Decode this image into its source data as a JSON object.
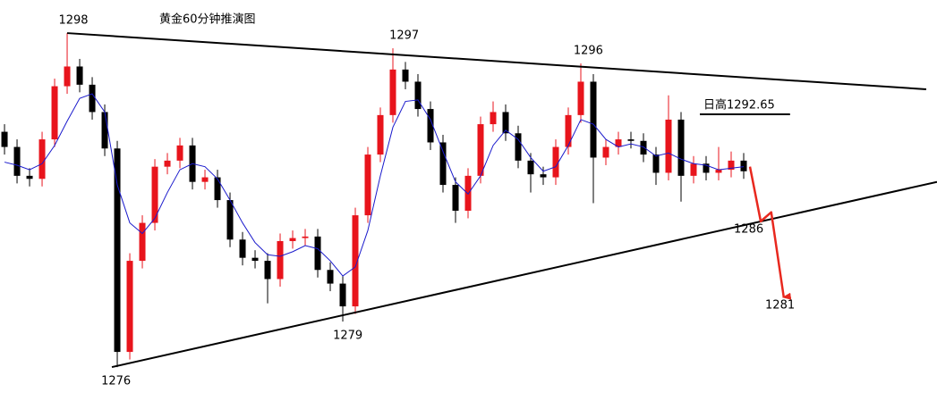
{
  "chart_data": {
    "type": "candlestick",
    "title": "黄金60分钟推演图",
    "x": [
      0,
      1,
      2,
      3,
      4,
      5,
      6,
      7,
      8,
      9,
      10,
      11,
      12,
      13,
      14,
      15,
      16,
      17,
      18,
      19,
      20,
      21,
      22,
      23,
      24,
      25,
      26,
      27,
      28,
      29,
      30,
      31,
      32,
      33,
      34,
      35,
      36,
      37,
      38,
      39,
      40,
      41,
      42,
      43,
      44,
      45,
      46,
      47,
      48,
      49,
      50,
      51,
      52,
      53,
      54,
      55,
      56,
      57,
      58,
      59
    ],
    "open": [
      1291.5,
      1290.5,
      1288.6,
      1288.4,
      1291.0,
      1294.5,
      1295.8,
      1294.6,
      1292.8,
      1290.4,
      1277.0,
      1283.0,
      1285.5,
      1289.2,
      1289.6,
      1290.6,
      1288.2,
      1288.5,
      1287.0,
      1284.4,
      1283.2,
      1283.0,
      1281.8,
      1284.3,
      1284.5,
      1284.6,
      1282.4,
      1281.5,
      1280.0,
      1286.0,
      1290.0,
      1292.6,
      1295.6,
      1294.8,
      1293.0,
      1290.8,
      1288.0,
      1286.3,
      1288.6,
      1292.0,
      1292.8,
      1291.4,
      1289.6,
      1288.7,
      1288.5,
      1290.5,
      1292.6,
      1294.8,
      1289.8,
      1290.5,
      1291.0,
      1290.9,
      1290.0,
      1288.8,
      1292.3,
      1288.6,
      1289.4,
      1288.8,
      1289.0,
      1289.6
    ],
    "high": [
      1292.0,
      1291.0,
      1289.1,
      1291.5,
      1295.0,
      1298.0,
      1296.3,
      1295.1,
      1293.3,
      1290.9,
      1283.5,
      1286.0,
      1289.7,
      1290.1,
      1291.1,
      1291.1,
      1289.0,
      1289.0,
      1287.5,
      1284.9,
      1283.7,
      1283.5,
      1284.8,
      1285.0,
      1285.1,
      1285.1,
      1282.9,
      1282.0,
      1286.5,
      1290.5,
      1293.1,
      1297.0,
      1296.1,
      1295.3,
      1293.5,
      1291.3,
      1288.5,
      1289.1,
      1292.5,
      1293.5,
      1293.3,
      1291.9,
      1290.1,
      1289.2,
      1291.0,
      1293.1,
      1296.0,
      1295.3,
      1291.0,
      1291.5,
      1291.5,
      1291.4,
      1290.5,
      1293.9,
      1292.8,
      1289.9,
      1289.9,
      1290.5,
      1290.2,
      1290.1
    ],
    "low": [
      1290.0,
      1288.1,
      1287.9,
      1287.9,
      1290.5,
      1294.0,
      1294.1,
      1292.3,
      1289.9,
      1276.0,
      1276.5,
      1282.5,
      1285.0,
      1288.7,
      1289.1,
      1287.7,
      1287.7,
      1286.5,
      1283.9,
      1282.7,
      1282.5,
      1280.2,
      1281.3,
      1283.8,
      1284.0,
      1281.9,
      1281.0,
      1279.0,
      1279.5,
      1285.5,
      1289.5,
      1292.1,
      1294.3,
      1292.5,
      1290.3,
      1287.5,
      1285.5,
      1285.8,
      1288.1,
      1291.5,
      1290.9,
      1289.1,
      1287.5,
      1288.0,
      1288.0,
      1290.0,
      1292.1,
      1286.8,
      1289.3,
      1290.0,
      1290.4,
      1289.5,
      1288.0,
      1288.3,
      1286.9,
      1288.1,
      1288.3,
      1288.3,
      1288.5,
      1288.4
    ],
    "close": [
      1290.5,
      1288.6,
      1288.4,
      1291.0,
      1294.5,
      1295.8,
      1294.6,
      1292.8,
      1290.4,
      1277.0,
      1283.0,
      1285.5,
      1289.2,
      1289.6,
      1290.6,
      1288.2,
      1288.5,
      1287.0,
      1284.4,
      1283.2,
      1283.0,
      1281.8,
      1284.3,
      1284.5,
      1284.6,
      1282.4,
      1281.5,
      1280.0,
      1286.0,
      1290.0,
      1292.6,
      1295.6,
      1294.8,
      1293.0,
      1290.8,
      1288.0,
      1286.3,
      1288.6,
      1292.0,
      1292.8,
      1291.4,
      1289.6,
      1288.7,
      1288.5,
      1290.5,
      1292.6,
      1294.8,
      1289.8,
      1290.5,
      1291.0,
      1290.9,
      1290.0,
      1288.8,
      1292.3,
      1288.6,
      1289.4,
      1288.8,
      1289.0,
      1289.6,
      1288.9
    ],
    "up_color": "#e8141c",
    "down_color": "#000000",
    "ma": {
      "color": "#1a1acc",
      "values": [
        1289.5,
        1289.3,
        1289.0,
        1289.4,
        1290.6,
        1292.2,
        1293.7,
        1294.0,
        1292.8,
        1288.0,
        1285.5,
        1284.8,
        1285.8,
        1287.5,
        1289.0,
        1289.4,
        1289.2,
        1288.4,
        1287.0,
        1285.5,
        1284.2,
        1283.4,
        1283.3,
        1283.6,
        1284.0,
        1283.8,
        1283.0,
        1282.0,
        1282.6,
        1285.0,
        1288.6,
        1291.8,
        1293.5,
        1293.6,
        1292.3,
        1290.2,
        1288.2,
        1287.4,
        1288.6,
        1290.6,
        1291.6,
        1291.0,
        1289.8,
        1288.9,
        1289.2,
        1290.6,
        1292.3,
        1292.0,
        1291.0,
        1290.5,
        1290.7,
        1290.5,
        1289.9,
        1290.1,
        1289.7,
        1289.4,
        1289.3,
        1289.0,
        1289.1,
        1289.2
      ]
    },
    "xlim": [
      -0.36,
      74.43
    ],
    "ylim": [
      1273.24,
      1300.18
    ],
    "trendlines": [
      {
        "color": "#000000",
        "x": [
          5,
          73.57
        ],
        "values": [
          1298,
          1294.3
        ]
      },
      {
        "color": "#000000",
        "x": [
          8.57,
          74.43
        ],
        "values": [
          1276,
          1288.2
        ]
      }
    ],
    "forecast": {
      "color": "#e8281e",
      "x": [
        59.5,
        60.36,
        61.2,
        62.2
      ],
      "values": [
        1289.2,
        1285.6,
        1286.2,
        1280.6
      ]
    },
    "day_high": {
      "value": 1292.65,
      "label": "日高1292.65",
      "x": [
        55.5,
        62.7
      ]
    },
    "labels_above": [
      {
        "x": 5.5,
        "value": 1298
      },
      {
        "x": 31.9,
        "value": 1297
      },
      {
        "x": 46.6,
        "value": 1296
      }
    ],
    "labels_below": [
      {
        "x": 8.9,
        "value": 1276
      },
      {
        "x": 27.4,
        "value": 1279
      },
      {
        "x": 59.4,
        "value": 1286
      },
      {
        "x": 61.9,
        "value": 1281
      }
    ]
  }
}
